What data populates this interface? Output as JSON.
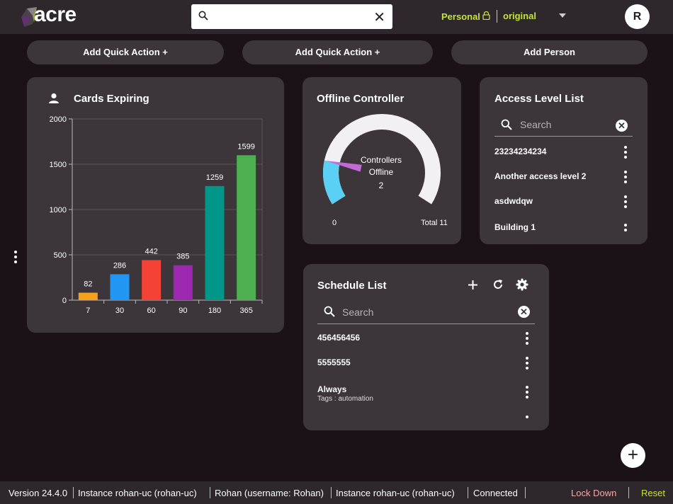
{
  "header": {
    "logo": "acre",
    "search_placeholder": "",
    "personal_label": "Personal",
    "partition": "original",
    "avatar_initial": "R"
  },
  "quick_actions": [
    "Add Quick Action  +",
    "Add Quick Action  +",
    "Add Person"
  ],
  "cards_expiring": {
    "title": "Cards Expiring"
  },
  "chart_data": {
    "type": "bar",
    "title": "Cards Expiring",
    "categories": [
      "7",
      "30",
      "60",
      "90",
      "180",
      "365"
    ],
    "values": [
      82,
      286,
      442,
      385,
      1259,
      1599
    ],
    "colors": [
      "#f5a11c",
      "#2196f3",
      "#f44336",
      "#9c27b0",
      "#009688",
      "#4caf50"
    ],
    "ylim": [
      0,
      2000
    ],
    "yticks": [
      "0",
      "500",
      "1000",
      "1500",
      "2000"
    ],
    "grid": true
  },
  "offline_controller": {
    "title": "Offline Controller",
    "center_label_1": "Controllers",
    "center_label_2": "Offline",
    "offline": 2,
    "total": 11,
    "min_label": "0",
    "total_label": "Total 11",
    "value_text": "2"
  },
  "access_level_list": {
    "title": "Access Level List",
    "search_placeholder": "Search",
    "items": [
      "23234234234",
      "Another access level 2",
      "asdwdqw",
      "Building 1"
    ]
  },
  "schedule_list": {
    "title": "Schedule List",
    "search_placeholder": "Search",
    "items": [
      {
        "name": "456456456",
        "sub": ""
      },
      {
        "name": "5555555",
        "sub": ""
      },
      {
        "name": "Always",
        "sub": "Tags : automation"
      }
    ]
  },
  "footer": {
    "version": "Version 24.4.0",
    "instance1": "Instance rohan-uc (rohan-uc)",
    "user": "Rohan (username: Rohan)",
    "instance2": "Instance rohan-uc (rohan-uc)",
    "status": "Connected",
    "lock_down": "Lock Down",
    "reset": "Reset"
  }
}
